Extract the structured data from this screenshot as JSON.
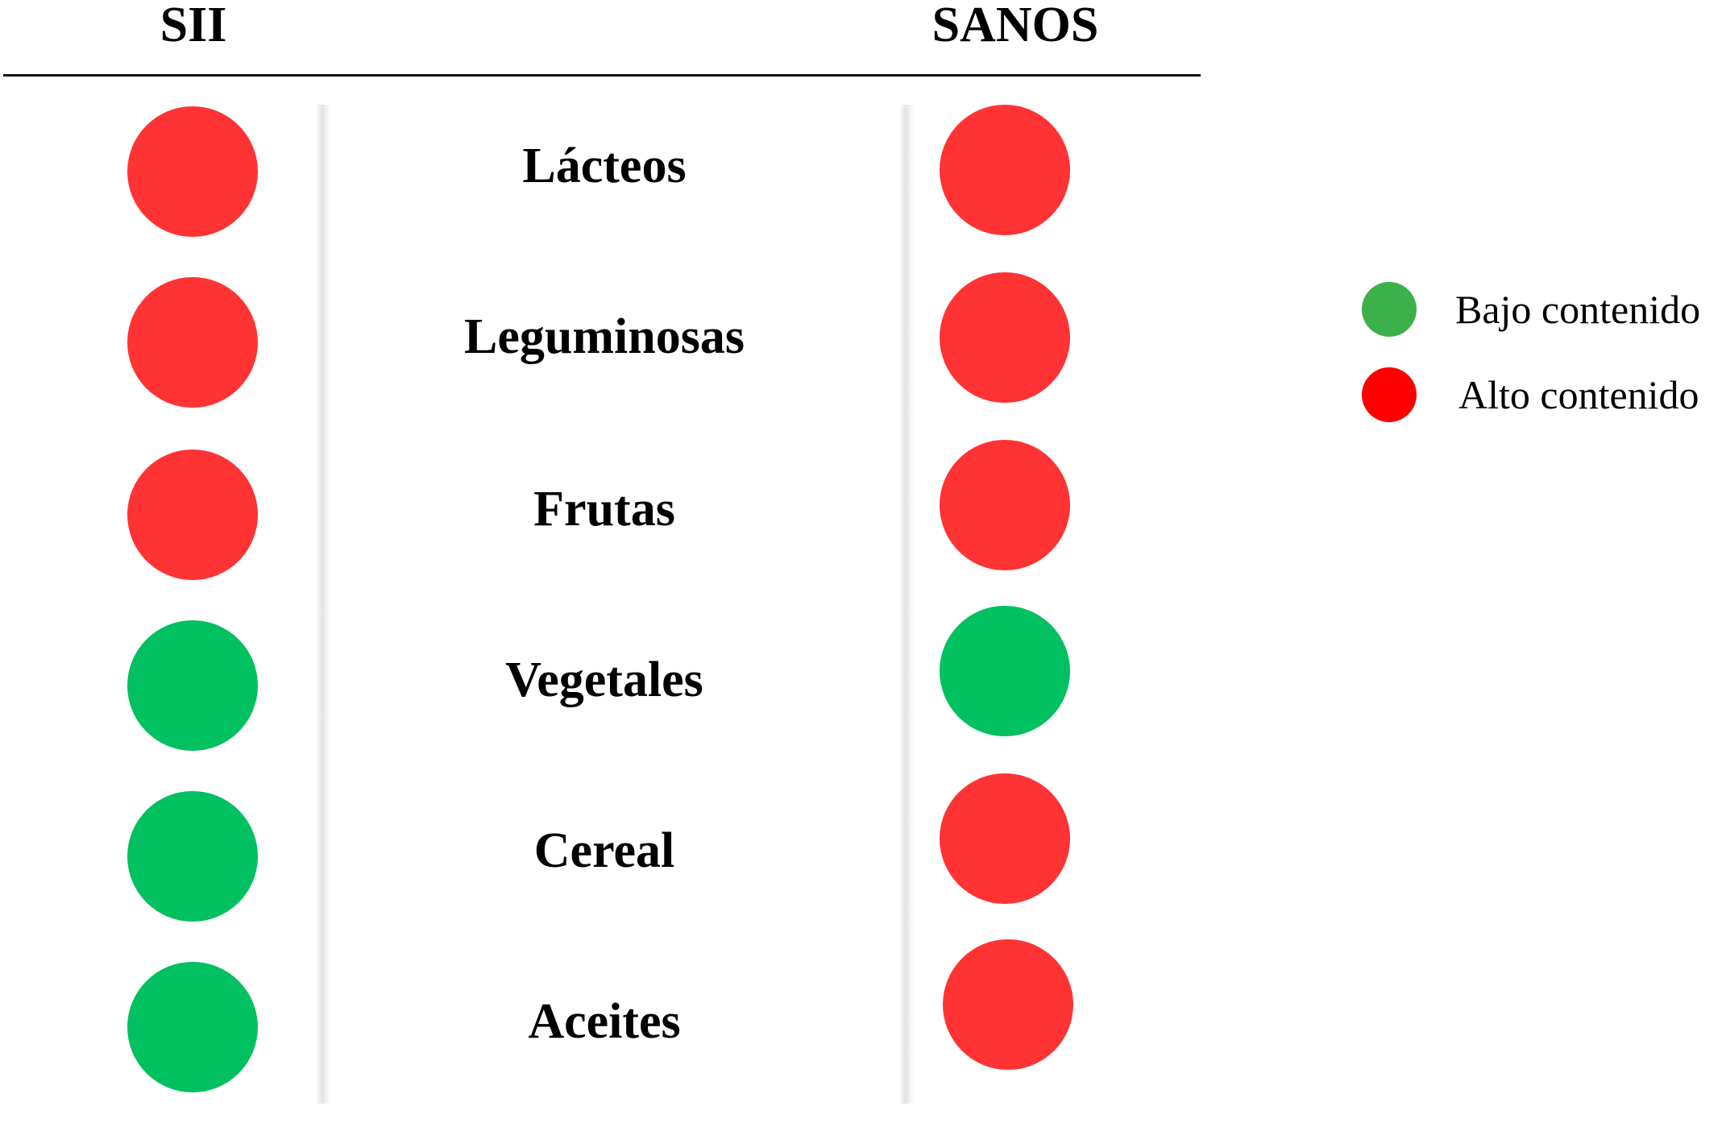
{
  "columns": {
    "left": "SII",
    "right": "SANOS"
  },
  "colors": {
    "alto": "#ff3333",
    "bajo": "#00c060",
    "legend_bajo": "#3cb04a",
    "legend_alto": "#ff0000"
  },
  "rows": [
    {
      "food": "Lácteos",
      "sii": "alto",
      "sanos": "alto"
    },
    {
      "food": "Leguminosas",
      "sii": "alto",
      "sanos": "alto"
    },
    {
      "food": "Frutas",
      "sii": "alto",
      "sanos": "alto"
    },
    {
      "food": "Vegetales",
      "sii": "bajo",
      "sanos": "bajo"
    },
    {
      "food": "Cereal",
      "sii": "bajo",
      "sanos": "alto"
    },
    {
      "food": "Aceites",
      "sii": "bajo",
      "sanos": "alto"
    }
  ],
  "legend": [
    {
      "key": "bajo",
      "label": "Bajo contenido",
      "color": "#3cb04a"
    },
    {
      "key": "alto",
      "label": "Alto contenido",
      "color": "#ff0000"
    }
  ]
}
